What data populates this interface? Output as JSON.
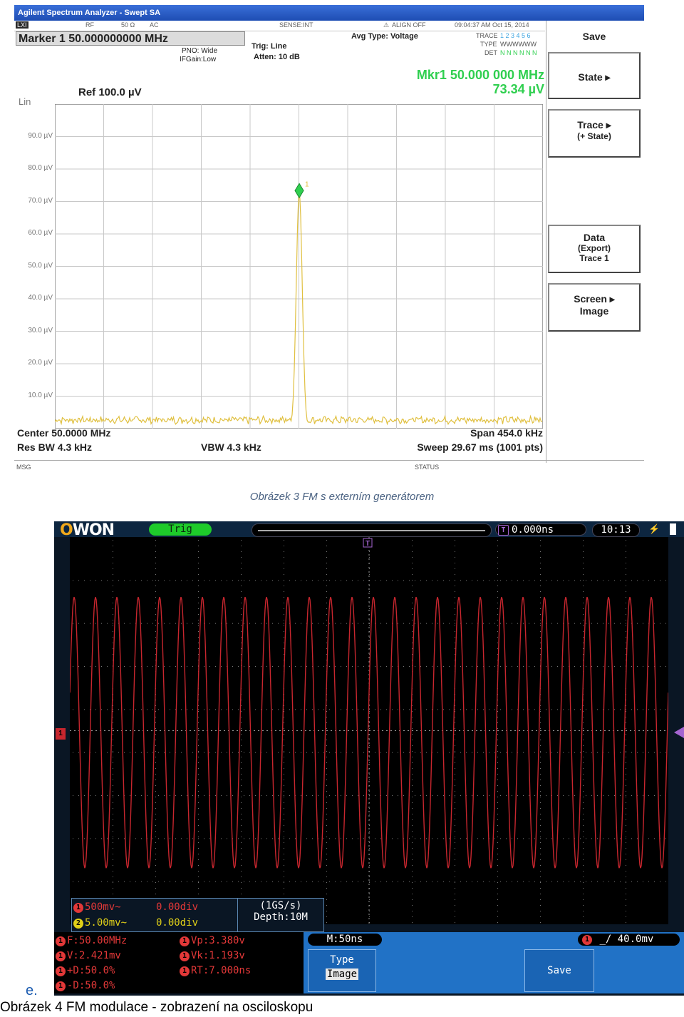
{
  "spectrum": {
    "title_bar": "Agilent Spectrum Analyzer - Swept SA",
    "status_cells": {
      "rf": "RF",
      "ohm": "50 Ω",
      "ac": "AC",
      "sense": "SENSE:INT",
      "align": "ALIGN OFF",
      "datetime": "09:04:37 AM Oct 15, 2014",
      "lxi": "LXI"
    },
    "marker_box": "Marker 1 50.000000000 MHz",
    "pno": "PNO: Wide",
    "ifgain": "IFGain:Low",
    "trig": "Trig: Line",
    "atten": "Atten: 10 dB",
    "avg_type": "Avg Type: Voltage",
    "trace_row": {
      "trace_label": "TRACE",
      "trace_vals": "1 2 3 4 5 6",
      "type_label": "TYPE",
      "type_vals": "WWWWWW",
      "det_label": "DET",
      "det_vals": "N N N N N N"
    },
    "mkr_freq": "Mkr1 50.000 000 MHz",
    "mkr_amp": "73.34 µV",
    "scale_mode": "Lin",
    "ref_level": "Ref 100.0 µV",
    "y_ticks": [
      "90.0 µV",
      "80.0 µV",
      "70.0 µV",
      "60.0 µV",
      "50.0 µV",
      "40.0 µV",
      "30.0 µV",
      "20.0 µV",
      "10.0 µV"
    ],
    "marker_label": "1",
    "center": "Center 50.0000 MHz",
    "res_bw": "Res BW 4.3 kHz",
    "vbw": "VBW 4.3 kHz",
    "span": "Span 454.0 kHz",
    "sweep": "Sweep  29.67 ms (1001 pts)",
    "msg": "MSG",
    "status": "STATUS",
    "softkeys": [
      {
        "label": "Save",
        "sub": ""
      },
      {
        "label": "State",
        "sub": ""
      },
      {
        "label": "Trace",
        "sub": "(+ State)"
      },
      {
        "label": "Data",
        "sub": "(Export)",
        "sub2": "Trace 1"
      },
      {
        "label": "Screen",
        "sub": "Image"
      }
    ],
    "peak_value_uV": 73.34,
    "colors": {
      "trace": "#e0c040",
      "marker": "#2fcf4f",
      "grid": "#c8c8c8"
    }
  },
  "caption3": "Obrázek 3 FM s externím generátorem",
  "scope": {
    "logo_o": "O",
    "logo_rest": "WON",
    "trig_status": "Trig",
    "t_badge": "T",
    "t_pos": "0.000ns",
    "clock": "10:13",
    "ch1_badge": "1",
    "ch_rows": [
      {
        "n": "1",
        "scale": "500mv~",
        "offset": "0.00div"
      },
      {
        "n": "2",
        "scale": "5.00mv~",
        "offset": "0.00div"
      }
    ],
    "sample_rate": "(1GS/s)",
    "depth": "Depth:10M",
    "measurements": [
      {
        "n": "1",
        "text": "F:50.00MHz"
      },
      {
        "n": "1",
        "text": "Vp:3.380v"
      },
      {
        "n": "1",
        "text": "V:2.421mv"
      },
      {
        "n": "1",
        "text": "Vk:1.193v"
      },
      {
        "n": "1",
        "text": "+D:50.0%"
      },
      {
        "n": "1",
        "text": "RT:7.000ns"
      },
      {
        "n": "1",
        "text": "-D:50.0%"
      }
    ],
    "time_scale": "M:50ns",
    "type_label": "Type",
    "type_value": "Image",
    "save_label": "Save",
    "trig_n": "1",
    "trig_level": "40.0mv",
    "cycles_visible": 28,
    "colors": {
      "ch1": "#c7262e",
      "ch2": "#e0d018",
      "trig": "#a464d0",
      "frame": "#2172c6"
    }
  },
  "label_e": "e.",
  "caption4": "Obrázek 4 FM modulace - zobrazení na osciloskopu"
}
